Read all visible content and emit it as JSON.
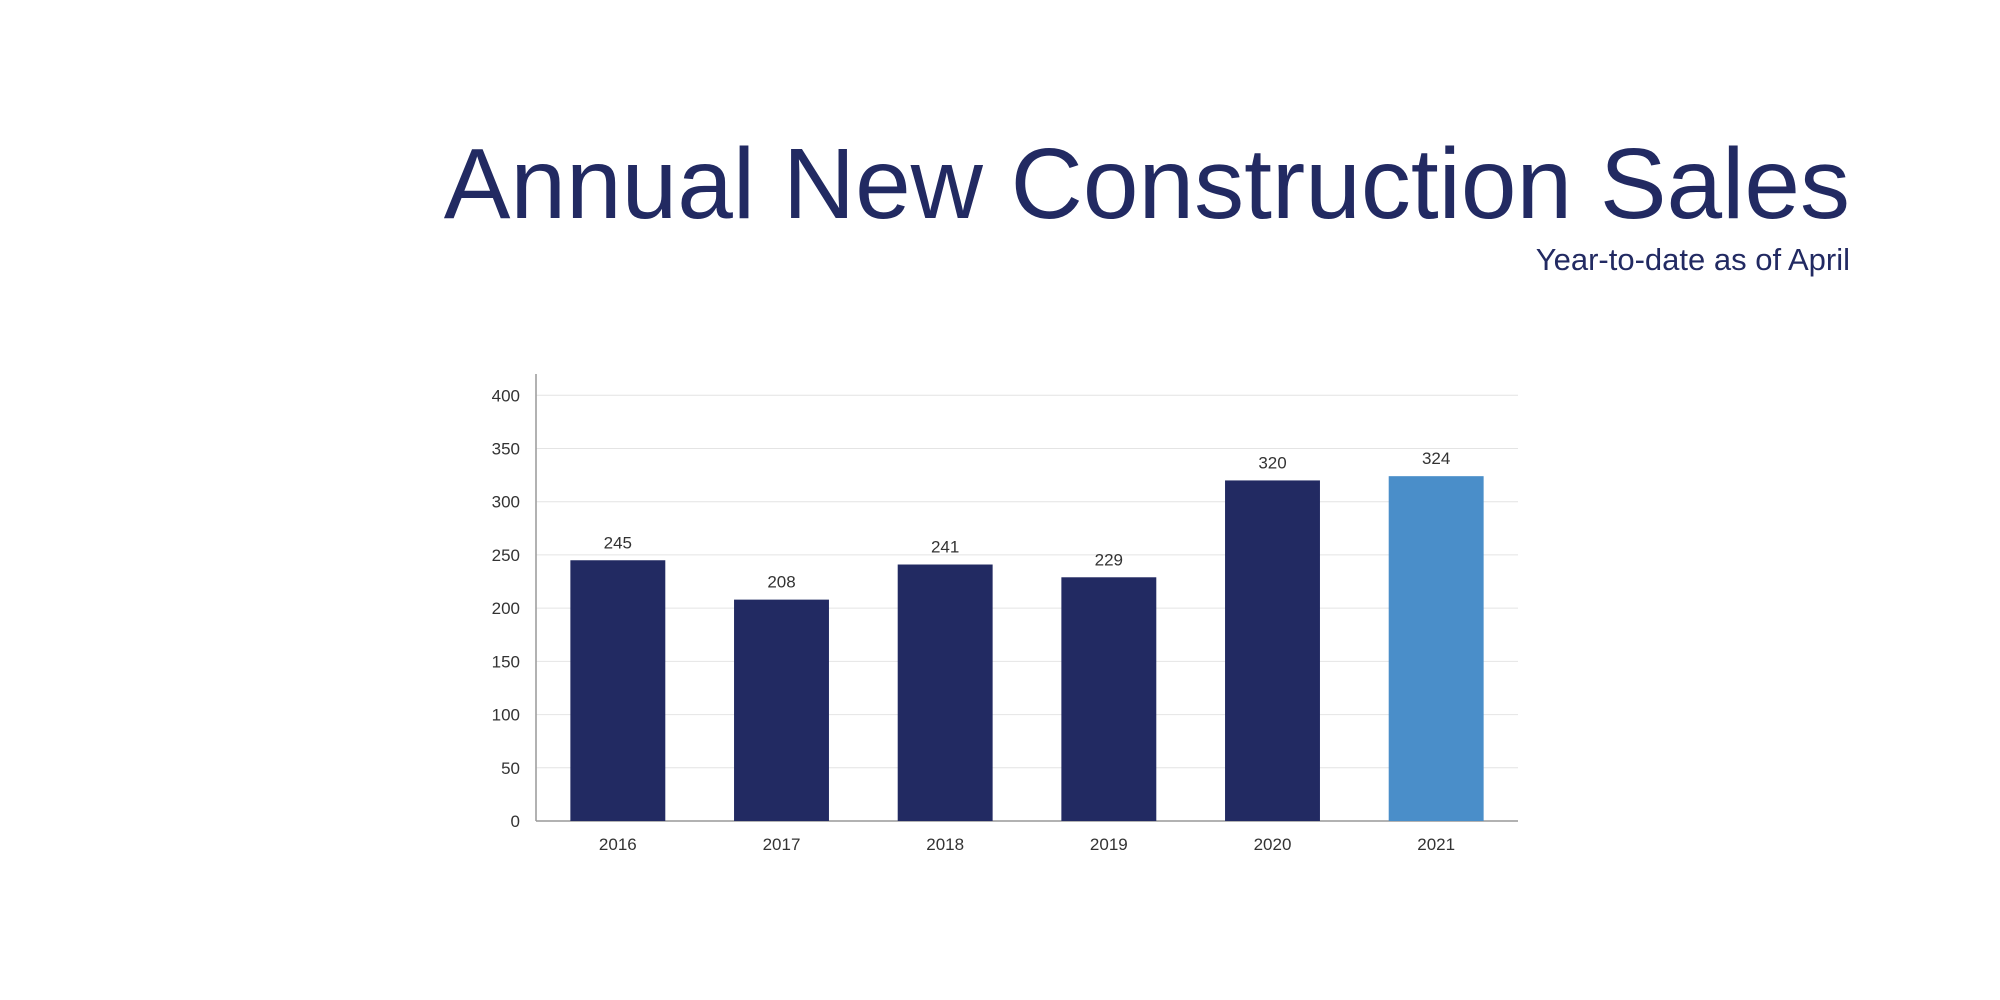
{
  "chart_data": {
    "type": "bar",
    "title": "Annual New Construction Sales",
    "subtitle": "Year-to-date as of April",
    "categories": [
      "2016",
      "2017",
      "2018",
      "2019",
      "2020",
      "2021"
    ],
    "values": [
      245,
      208,
      241,
      229,
      320,
      324
    ],
    "colors": [
      "#222a62",
      "#222a62",
      "#222a62",
      "#222a62",
      "#222a62",
      "#4a8ec9"
    ],
    "ylim": [
      0,
      420
    ],
    "yticks": [
      0,
      50,
      100,
      150,
      200,
      250,
      300,
      350,
      400
    ],
    "grid": true
  }
}
